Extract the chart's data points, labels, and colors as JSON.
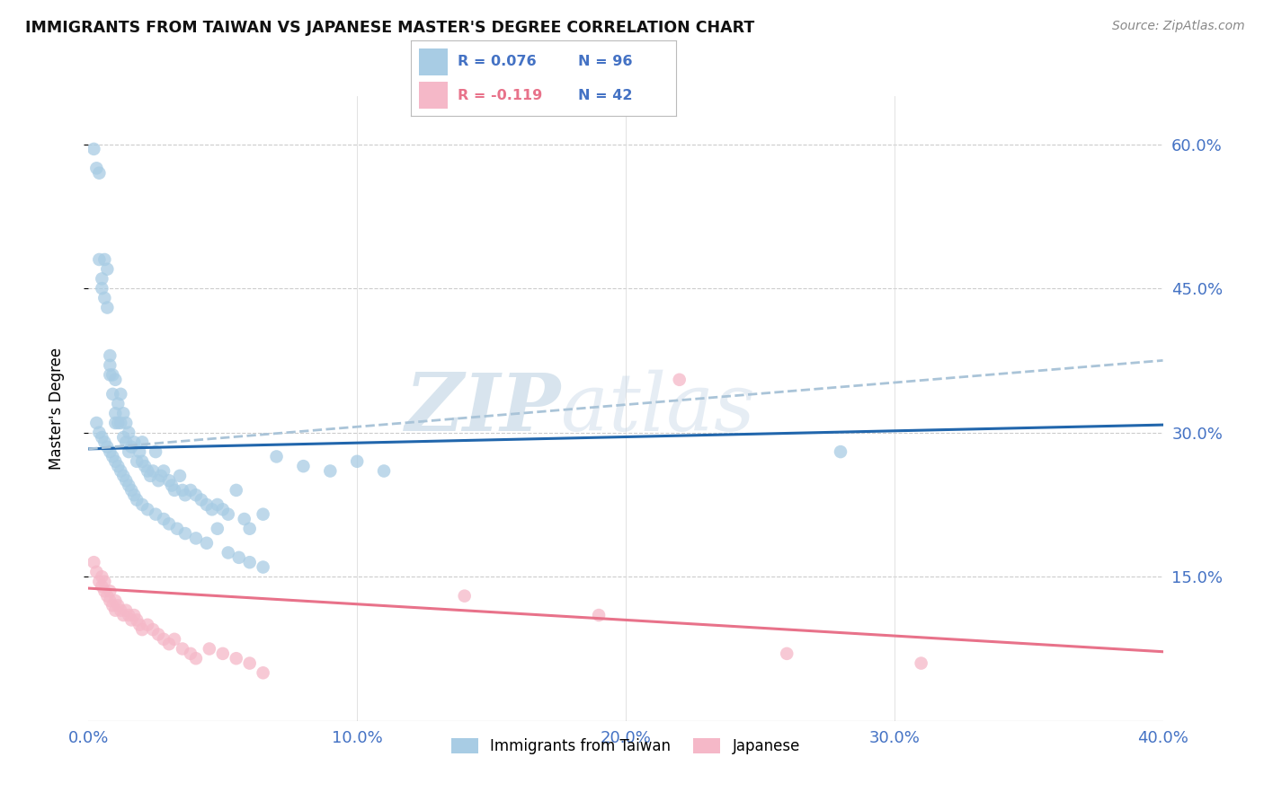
{
  "title": "IMMIGRANTS FROM TAIWAN VS JAPANESE MASTER'S DEGREE CORRELATION CHART",
  "source": "Source: ZipAtlas.com",
  "ylabel": "Master's Degree",
  "ytick_labels": [
    "60.0%",
    "45.0%",
    "30.0%",
    "15.0%"
  ],
  "ytick_values": [
    0.6,
    0.45,
    0.3,
    0.15
  ],
  "xtick_labels": [
    "0.0%",
    "10.0%",
    "20.0%",
    "30.0%",
    "40.0%"
  ],
  "xtick_values": [
    0.0,
    0.1,
    0.2,
    0.3,
    0.4
  ],
  "xmin": 0.0,
  "xmax": 0.4,
  "ymin": 0.0,
  "ymax": 0.65,
  "legend_blue_R": "0.076",
  "legend_blue_N": "96",
  "legend_pink_R": "-0.119",
  "legend_pink_N": "42",
  "legend_label_blue": "Immigrants from Taiwan",
  "legend_label_pink": "Japanese",
  "blue_color": "#a8cce4",
  "pink_color": "#f5b8c8",
  "blue_line_color": "#2166ac",
  "pink_line_color": "#e8728a",
  "dashed_line_color": "#aac4d8",
  "watermark_zip": "ZIP",
  "watermark_atlas": "atlas",
  "blue_scatter_x": [
    0.002,
    0.003,
    0.004,
    0.004,
    0.005,
    0.005,
    0.006,
    0.006,
    0.007,
    0.007,
    0.008,
    0.008,
    0.008,
    0.009,
    0.009,
    0.01,
    0.01,
    0.01,
    0.011,
    0.011,
    0.012,
    0.012,
    0.013,
    0.013,
    0.014,
    0.014,
    0.015,
    0.015,
    0.016,
    0.017,
    0.018,
    0.019,
    0.02,
    0.02,
    0.021,
    0.022,
    0.023,
    0.024,
    0.025,
    0.026,
    0.027,
    0.028,
    0.03,
    0.031,
    0.032,
    0.034,
    0.035,
    0.036,
    0.038,
    0.04,
    0.042,
    0.044,
    0.046,
    0.048,
    0.05,
    0.052,
    0.055,
    0.058,
    0.06,
    0.065,
    0.003,
    0.004,
    0.005,
    0.006,
    0.007,
    0.008,
    0.009,
    0.01,
    0.011,
    0.012,
    0.013,
    0.014,
    0.015,
    0.016,
    0.017,
    0.018,
    0.02,
    0.022,
    0.025,
    0.028,
    0.03,
    0.033,
    0.036,
    0.04,
    0.044,
    0.048,
    0.052,
    0.056,
    0.06,
    0.065,
    0.07,
    0.08,
    0.09,
    0.1,
    0.11,
    0.28
  ],
  "blue_scatter_y": [
    0.595,
    0.575,
    0.48,
    0.57,
    0.46,
    0.45,
    0.48,
    0.44,
    0.43,
    0.47,
    0.38,
    0.37,
    0.36,
    0.34,
    0.36,
    0.32,
    0.31,
    0.355,
    0.33,
    0.31,
    0.34,
    0.31,
    0.32,
    0.295,
    0.31,
    0.29,
    0.3,
    0.28,
    0.285,
    0.29,
    0.27,
    0.28,
    0.29,
    0.27,
    0.265,
    0.26,
    0.255,
    0.26,
    0.28,
    0.25,
    0.255,
    0.26,
    0.25,
    0.245,
    0.24,
    0.255,
    0.24,
    0.235,
    0.24,
    0.235,
    0.23,
    0.225,
    0.22,
    0.225,
    0.22,
    0.215,
    0.24,
    0.21,
    0.2,
    0.215,
    0.31,
    0.3,
    0.295,
    0.29,
    0.285,
    0.28,
    0.275,
    0.27,
    0.265,
    0.26,
    0.255,
    0.25,
    0.245,
    0.24,
    0.235,
    0.23,
    0.225,
    0.22,
    0.215,
    0.21,
    0.205,
    0.2,
    0.195,
    0.19,
    0.185,
    0.2,
    0.175,
    0.17,
    0.165,
    0.16,
    0.275,
    0.265,
    0.26,
    0.27,
    0.26,
    0.28
  ],
  "pink_scatter_x": [
    0.002,
    0.003,
    0.004,
    0.005,
    0.005,
    0.006,
    0.006,
    0.007,
    0.008,
    0.008,
    0.009,
    0.01,
    0.01,
    0.011,
    0.012,
    0.013,
    0.014,
    0.015,
    0.016,
    0.017,
    0.018,
    0.019,
    0.02,
    0.022,
    0.024,
    0.026,
    0.028,
    0.03,
    0.032,
    0.035,
    0.038,
    0.04,
    0.045,
    0.05,
    0.055,
    0.06,
    0.065,
    0.14,
    0.19,
    0.22,
    0.26,
    0.31
  ],
  "pink_scatter_y": [
    0.165,
    0.155,
    0.145,
    0.14,
    0.15,
    0.135,
    0.145,
    0.13,
    0.125,
    0.135,
    0.12,
    0.115,
    0.125,
    0.12,
    0.115,
    0.11,
    0.115,
    0.11,
    0.105,
    0.11,
    0.105,
    0.1,
    0.095,
    0.1,
    0.095,
    0.09,
    0.085,
    0.08,
    0.085,
    0.075,
    0.07,
    0.065,
    0.075,
    0.07,
    0.065,
    0.06,
    0.05,
    0.13,
    0.11,
    0.355,
    0.07,
    0.06
  ],
  "blue_trend_x": [
    0.0,
    0.4
  ],
  "blue_trend_y": [
    0.283,
    0.308
  ],
  "pink_trend_x": [
    0.0,
    0.4
  ],
  "pink_trend_y": [
    0.138,
    0.072
  ],
  "dashed_trend_x": [
    0.0,
    0.4
  ],
  "dashed_trend_y": [
    0.283,
    0.375
  ]
}
